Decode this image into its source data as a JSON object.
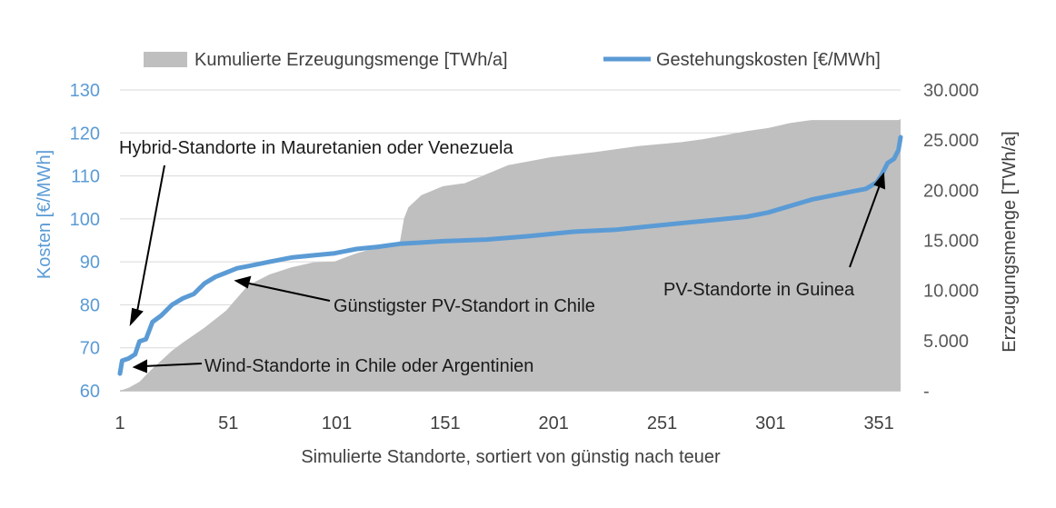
{
  "chart_data": {
    "type": "line+area",
    "xlabel": "Simulierte Standorte, sortiert von günstig nach teuer",
    "ylabel_left": "Kosten [€/MWh]",
    "ylabel_right": "Erzeugungsmenge  [TWh/a]",
    "xlim": [
      1,
      361
    ],
    "ylim_left": [
      60,
      130
    ],
    "ylim_right": [
      0,
      30000
    ],
    "x_ticks": [
      "1",
      "51",
      "101",
      "151",
      "201",
      "251",
      "301",
      "351"
    ],
    "y_left_ticks": [
      "60",
      "70",
      "80",
      "90",
      "100",
      "110",
      "120",
      "130"
    ],
    "y_right_ticks": [
      "-",
      "5.000",
      "10.000",
      "15.000",
      "20.000",
      "25.000",
      "30.000"
    ],
    "legend": {
      "area_label": "Kumulierte Erzeugungsmenge [TWh/a]",
      "line_label": "Gestehungskosten [€/MWh]"
    },
    "series": [
      {
        "name": "Kumulierte Erzeugungsmenge [TWh/a]",
        "axis": "right",
        "color": "#bfbfbf",
        "x": [
          1,
          5,
          10,
          15,
          20,
          25,
          30,
          40,
          50,
          60,
          70,
          80,
          90,
          100,
          110,
          120,
          130,
          132,
          134,
          140,
          150,
          160,
          180,
          200,
          220,
          240,
          260,
          270,
          280,
          290,
          300,
          310,
          320,
          330,
          340,
          350,
          360,
          361
        ],
        "values": [
          0,
          300,
          900,
          2000,
          3000,
          4000,
          4800,
          6300,
          8000,
          10500,
          11600,
          12300,
          12800,
          12900,
          13700,
          14300,
          14700,
          17200,
          18300,
          19500,
          20400,
          20700,
          22500,
          23300,
          23800,
          24400,
          24800,
          25100,
          25500,
          25900,
          26200,
          26700,
          27000,
          27000,
          27000,
          27000,
          27000,
          27100
        ]
      },
      {
        "name": "Gestehungskosten [€/MWh]",
        "axis": "left",
        "color": "#5b9bd5",
        "x": [
          1,
          2,
          5,
          8,
          10,
          13,
          16,
          20,
          25,
          30,
          35,
          40,
          45,
          50,
          55,
          60,
          70,
          80,
          90,
          100,
          110,
          120,
          130,
          140,
          150,
          170,
          190,
          210,
          230,
          250,
          270,
          290,
          300,
          310,
          320,
          330,
          340,
          345,
          350,
          352,
          355,
          358,
          359,
          360,
          361
        ],
        "values": [
          64,
          67,
          67.5,
          68.5,
          71.5,
          72,
          76,
          77.5,
          80,
          81.5,
          82.5,
          85,
          86.5,
          87.5,
          88.5,
          89,
          90,
          91,
          91.5,
          92,
          93,
          93.5,
          94.2,
          94.5,
          94.8,
          95.2,
          96,
          97,
          97.5,
          98.5,
          99.5,
          100.5,
          101.5,
          103,
          104.5,
          105.5,
          106.5,
          107,
          108.5,
          110,
          113,
          114,
          115,
          116,
          119
        ]
      }
    ],
    "annotations": [
      "Hybrid-Standorte in Mauretanien oder Venezuela",
      "Günstigster PV-Standort in Chile",
      "Wind-Standorte in Chile oder Argentinien",
      "PV-Standorte in Guinea"
    ]
  }
}
